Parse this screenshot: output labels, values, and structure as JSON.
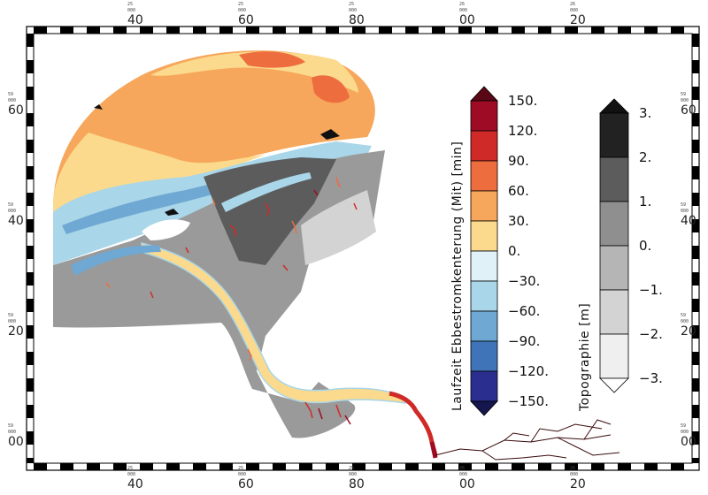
{
  "frame": {
    "x_ticks": [
      {
        "major": "40",
        "minor": "25\n000"
      },
      {
        "major": "60",
        "minor": "25\n000"
      },
      {
        "major": "80",
        "minor": "25\n000"
      },
      {
        "major": "00",
        "minor": "26\n000"
      },
      {
        "major": "20",
        "minor": "26\n000"
      }
    ],
    "y_ticks": [
      {
        "major": "60",
        "minor": "59\n000"
      },
      {
        "major": "40",
        "minor": "59\n000"
      },
      {
        "major": "20",
        "minor": "59\n000"
      },
      {
        "major": "00",
        "minor": "59\n000"
      }
    ]
  },
  "colorbar_flow": {
    "title": "Laufzeit Ebbestromkenterung (Mit) [min]",
    "labels": [
      "150.",
      "120.",
      "90.",
      "60.",
      "30.",
      "0.",
      "−30.",
      "−60.",
      "−90.",
      "−120.",
      "−150."
    ],
    "colors": [
      "#9e0b24",
      "#cf2a27",
      "#ee6d3f",
      "#f7a75b",
      "#fbda8d",
      "#e0f1f7",
      "#a9d6e8",
      "#6ea8d3",
      "#3f74b8",
      "#2a2f8f"
    ],
    "over_color": "#5a0716",
    "under_color": "#14164d"
  },
  "colorbar_topo": {
    "title": "Topographie [m]",
    "labels": [
      "3.",
      "2.",
      "1.",
      "0.",
      "−1.",
      "−2.",
      "−3."
    ],
    "colors": [
      "#222222",
      "#5c5c5c",
      "#8f8f8f",
      "#b5b5b5",
      "#d3d3d3",
      "#efefef"
    ],
    "over_color": "#111111",
    "under_color": "#ffffff"
  }
}
